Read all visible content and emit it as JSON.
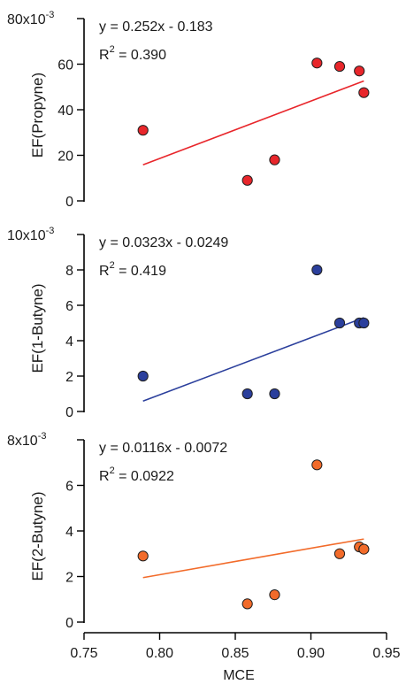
{
  "chart_data": [
    {
      "type": "scatter",
      "ylabel": "EF(Propyne)",
      "y_multiplier_label": "x10",
      "y_multiplier_exponent": "-3",
      "ylim": [
        0,
        80
      ],
      "yticks": [
        0,
        20,
        40,
        60,
        80
      ],
      "ytick_labels": [
        "0",
        "20",
        "40",
        "60",
        "80"
      ],
      "marker_color": "#e8262b",
      "line_color": "#e8262b",
      "points": [
        {
          "x": 0.789,
          "y": 31
        },
        {
          "x": 0.858,
          "y": 9
        },
        {
          "x": 0.876,
          "y": 18
        },
        {
          "x": 0.904,
          "y": 60.5
        },
        {
          "x": 0.919,
          "y": 59
        },
        {
          "x": 0.932,
          "y": 57
        },
        {
          "x": 0.935,
          "y": 47.5
        }
      ],
      "fit": {
        "slope": 0.252,
        "intercept": -0.183,
        "x_range": [
          0.789,
          0.935
        ]
      },
      "equation": "y = 0.252x - 0.183",
      "r2_prefix": "R",
      "r2_sup": "2",
      "r2_value": " = 0.390"
    },
    {
      "type": "scatter",
      "ylabel": "EF(1-Butyne)",
      "y_multiplier_label": "x10",
      "y_multiplier_exponent": "-3",
      "ylim": [
        0,
        10
      ],
      "yticks": [
        0,
        2,
        4,
        6,
        8,
        10
      ],
      "ytick_labels": [
        "0",
        "2",
        "4",
        "6",
        "8",
        "10"
      ],
      "marker_color": "#2b3f9c",
      "line_color": "#2b3f9c",
      "points": [
        {
          "x": 0.789,
          "y": 2
        },
        {
          "x": 0.858,
          "y": 1
        },
        {
          "x": 0.876,
          "y": 1
        },
        {
          "x": 0.904,
          "y": 8
        },
        {
          "x": 0.919,
          "y": 5
        },
        {
          "x": 0.932,
          "y": 5
        },
        {
          "x": 0.935,
          "y": 5
        }
      ],
      "fit": {
        "slope": 0.0323,
        "intercept": -0.0249,
        "x_range": [
          0.789,
          0.935
        ]
      },
      "equation": "y = 0.0323x - 0.0249",
      "r2_prefix": "R",
      "r2_sup": "2",
      "r2_value": " = 0.419"
    },
    {
      "type": "scatter",
      "ylabel": "EF(2-Butyne)",
      "y_multiplier_label": "x10",
      "y_multiplier_exponent": "-3",
      "ylim": [
        0,
        8
      ],
      "yticks": [
        0,
        2,
        4,
        6,
        8
      ],
      "ytick_labels": [
        "0",
        "2",
        "4",
        "6",
        "8"
      ],
      "marker_color": "#f26b2a",
      "line_color": "#f26b2a",
      "points": [
        {
          "x": 0.789,
          "y": 2.9
        },
        {
          "x": 0.858,
          "y": 0.8
        },
        {
          "x": 0.876,
          "y": 1.2
        },
        {
          "x": 0.904,
          "y": 6.9
        },
        {
          "x": 0.919,
          "y": 3
        },
        {
          "x": 0.932,
          "y": 3.3
        },
        {
          "x": 0.935,
          "y": 3.2
        }
      ],
      "fit": {
        "slope": 0.0116,
        "intercept": -0.0072,
        "x_range": [
          0.789,
          0.935
        ]
      },
      "equation": "y = 0.0116x - 0.0072",
      "r2_prefix": "R",
      "r2_sup": "2",
      "r2_value": " = 0.0922"
    }
  ],
  "x_axis": {
    "label": "MCE",
    "xlim": [
      0.75,
      0.95
    ],
    "ticks": [
      0.75,
      0.8,
      0.85,
      0.9,
      0.95
    ],
    "tick_labels": [
      "0.75",
      "0.80",
      "0.85",
      "0.90",
      "0.95"
    ]
  }
}
